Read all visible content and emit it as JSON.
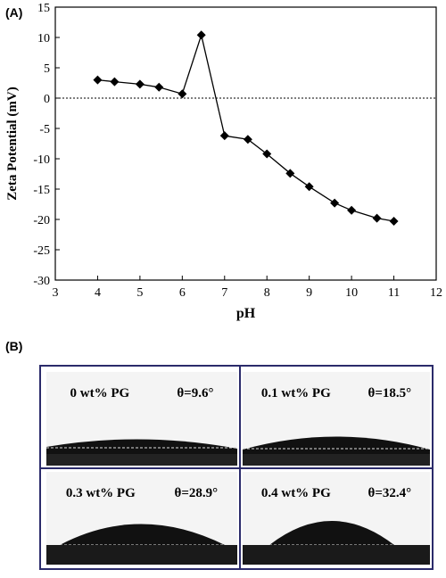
{
  "panel_a_label": "(A)",
  "panel_b_label": "(B)",
  "chart_data": {
    "type": "line",
    "xlabel": "pH",
    "ylabel": "Zeta Potential (mV)",
    "xlim": [
      3,
      12
    ],
    "ylim": [
      -30,
      15
    ],
    "xticks": [
      3,
      4,
      5,
      6,
      7,
      8,
      9,
      10,
      11,
      12
    ],
    "yticks": [
      15,
      10,
      5,
      0,
      -5,
      -10,
      -15,
      -20,
      -25,
      -30
    ],
    "reference_line": {
      "y": 0,
      "style": "dotted"
    },
    "marker": "diamond",
    "color": "#000000",
    "series": [
      {
        "x": [
          4.0,
          4.4,
          5.0,
          5.45,
          6.0,
          6.45,
          7.0,
          7.55,
          8.0,
          8.55,
          9.0,
          9.6,
          10.0,
          10.6,
          11.0
        ],
        "y": [
          3.0,
          2.7,
          2.3,
          1.8,
          0.7,
          10.4,
          -6.2,
          -6.8,
          -9.2,
          -12.4,
          -14.6,
          -17.3,
          -18.5,
          -19.8,
          -20.3
        ]
      }
    ]
  },
  "contact_angle_panels": [
    {
      "concentration": "0 wt% PG",
      "angle": "θ=9.6°"
    },
    {
      "concentration": "0.1 wt% PG",
      "angle": "θ=18.5°"
    },
    {
      "concentration": "0.3 wt% PG",
      "angle": "θ=28.9°"
    },
    {
      "concentration": "0.4 wt% PG",
      "angle": "θ=32.4°"
    }
  ]
}
